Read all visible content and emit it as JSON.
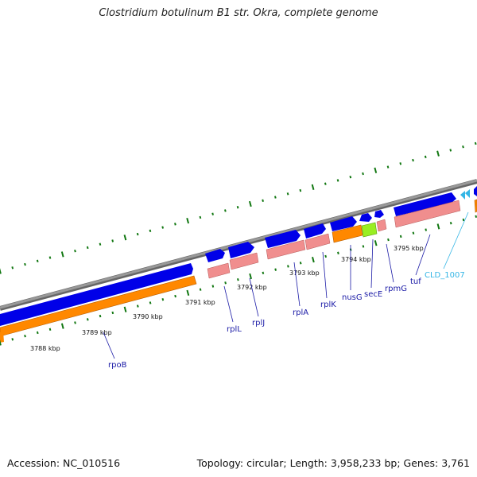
{
  "title": "Clostridium botulinum B1 str. Okra, complete genome",
  "accession": "Accession: NC_010516",
  "topology": "Topology: circular; Length: 3,958,233 bp; Genes: 3,761",
  "kbp_labels": [
    "3788 kbp",
    "3789 kbp",
    "3790 kbp",
    "3791 kbp",
    "3792 kbp",
    "3793 kbp",
    "3794 kbp",
    "3795 kbp"
  ],
  "gene_labels": [
    "rpoB",
    "rplL",
    "rplJ",
    "rplA",
    "rplK",
    "nusG",
    "secE",
    "rpmG",
    "tuf",
    "CLD_1007"
  ],
  "colors": {
    "backbone": "#888888",
    "cds": "#0000e8",
    "gene": "#f08e8e",
    "rrna": "#ff8800",
    "misc": "#99ee22",
    "ticks": "#117711",
    "label": "#1a1aa6",
    "label_alt": "#33b5e5"
  }
}
